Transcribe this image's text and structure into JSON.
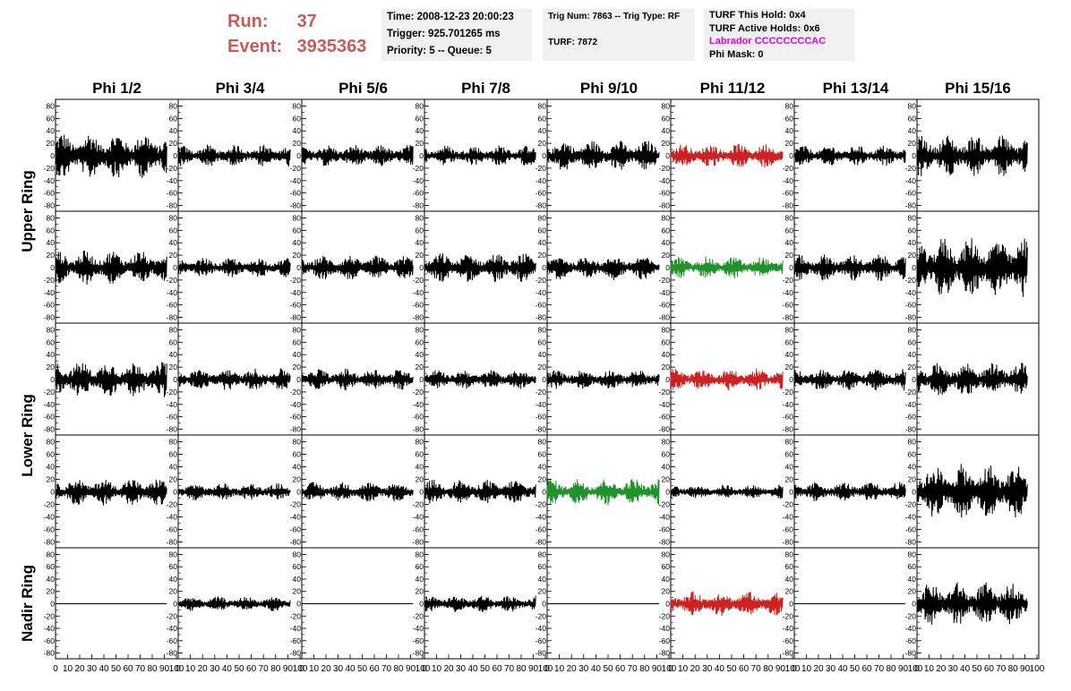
{
  "header": {
    "run_label": "Run:",
    "run_value": "37",
    "event_label": "Event:",
    "event_value": "3935363",
    "time": "Time: 2008-12-23 20:00:23",
    "trigger": "Trigger: 925.701265 ms",
    "priority": "Priority: 5 -- Queue: 5",
    "trig_num": "Trig Num: 7863 -- Trig Type: RF",
    "turf": "TURF: 7872",
    "turf_this_hold": "TURF This Hold: 0x4",
    "turf_active_holds": "TURF Active Holds: 0x6",
    "labrador": "Labrador CCCCCCCCAC",
    "phi_mask": "Phi Mask: 0"
  },
  "colors": {
    "header_red": "#c85a5a",
    "labrador_magenta": "#e000e0",
    "trace_black": "#000000",
    "trace_red": "#cc2222",
    "trace_green": "#22922c",
    "box_bg": "#f0f0f0"
  },
  "chart_data": {
    "type": "line",
    "columns": [
      "Phi 1/2",
      "Phi 3/4",
      "Phi 5/6",
      "Phi 7/8",
      "Phi 9/10",
      "Phi 11/12",
      "Phi 13/14",
      "Phi 15/16"
    ],
    "row_groups": [
      {
        "name": "Upper Ring",
        "rows": [
          0,
          1
        ]
      },
      {
        "name": "Lower Ring",
        "rows": [
          2,
          3
        ]
      },
      {
        "name": "Nadir Ring",
        "rows": [
          4
        ]
      }
    ],
    "ylim": [
      -85,
      85
    ],
    "xlim": [
      0,
      100
    ],
    "y_ticks": [
      -80,
      -60,
      -40,
      -20,
      0,
      20,
      40,
      60,
      80
    ],
    "y_tick_labels": [
      "-80",
      "-60",
      "-40",
      "-20",
      "0",
      "20",
      "40",
      "60",
      "80"
    ],
    "x_ticks": [
      0,
      10,
      20,
      30,
      40,
      50,
      60,
      70,
      80,
      90,
      100
    ],
    "x_tick_labels": [
      "0",
      "10",
      "20",
      "30",
      "40",
      "50",
      "60",
      "70",
      "80",
      "90",
      "100"
    ],
    "x_trace_range": [
      0,
      92
    ],
    "panels": [
      [
        {
          "amp": 38,
          "color": "black"
        },
        {
          "amp": 18,
          "color": "black"
        },
        {
          "amp": 18,
          "color": "black"
        },
        {
          "amp": 17,
          "color": "black"
        },
        {
          "amp": 25,
          "color": "black"
        },
        {
          "amp": 20,
          "color": "red"
        },
        {
          "amp": 17,
          "color": "black"
        },
        {
          "amp": 34,
          "color": "black"
        }
      ],
      [
        {
          "amp": 28,
          "color": "black"
        },
        {
          "amp": 16,
          "color": "black"
        },
        {
          "amp": 20,
          "color": "black"
        },
        {
          "amp": 24,
          "color": "black"
        },
        {
          "amp": 20,
          "color": "black"
        },
        {
          "amp": 18,
          "color": "green"
        },
        {
          "amp": 22,
          "color": "black"
        },
        {
          "amp": 50,
          "color": "black"
        }
      ],
      [
        {
          "amp": 30,
          "color": "black"
        },
        {
          "amp": 18,
          "color": "black"
        },
        {
          "amp": 18,
          "color": "black"
        },
        {
          "amp": 16,
          "color": "black"
        },
        {
          "amp": 16,
          "color": "black"
        },
        {
          "amp": 18,
          "color": "red"
        },
        {
          "amp": 18,
          "color": "black"
        },
        {
          "amp": 28,
          "color": "black"
        }
      ],
      [
        {
          "amp": 22,
          "color": "black"
        },
        {
          "amp": 14,
          "color": "black"
        },
        {
          "amp": 16,
          "color": "black"
        },
        {
          "amp": 20,
          "color": "black"
        },
        {
          "amp": 22,
          "color": "green"
        },
        {
          "amp": 12,
          "color": "black"
        },
        {
          "amp": 16,
          "color": "black"
        },
        {
          "amp": 45,
          "color": "black"
        }
      ],
      [
        {
          "amp": 0,
          "color": "black"
        },
        {
          "amp": 12,
          "color": "black"
        },
        {
          "amp": 0,
          "color": "black"
        },
        {
          "amp": 14,
          "color": "black"
        },
        {
          "amp": 0,
          "color": "black"
        },
        {
          "amp": 20,
          "color": "red"
        },
        {
          "amp": 0,
          "color": "black"
        },
        {
          "amp": 35,
          "color": "black"
        }
      ]
    ]
  }
}
